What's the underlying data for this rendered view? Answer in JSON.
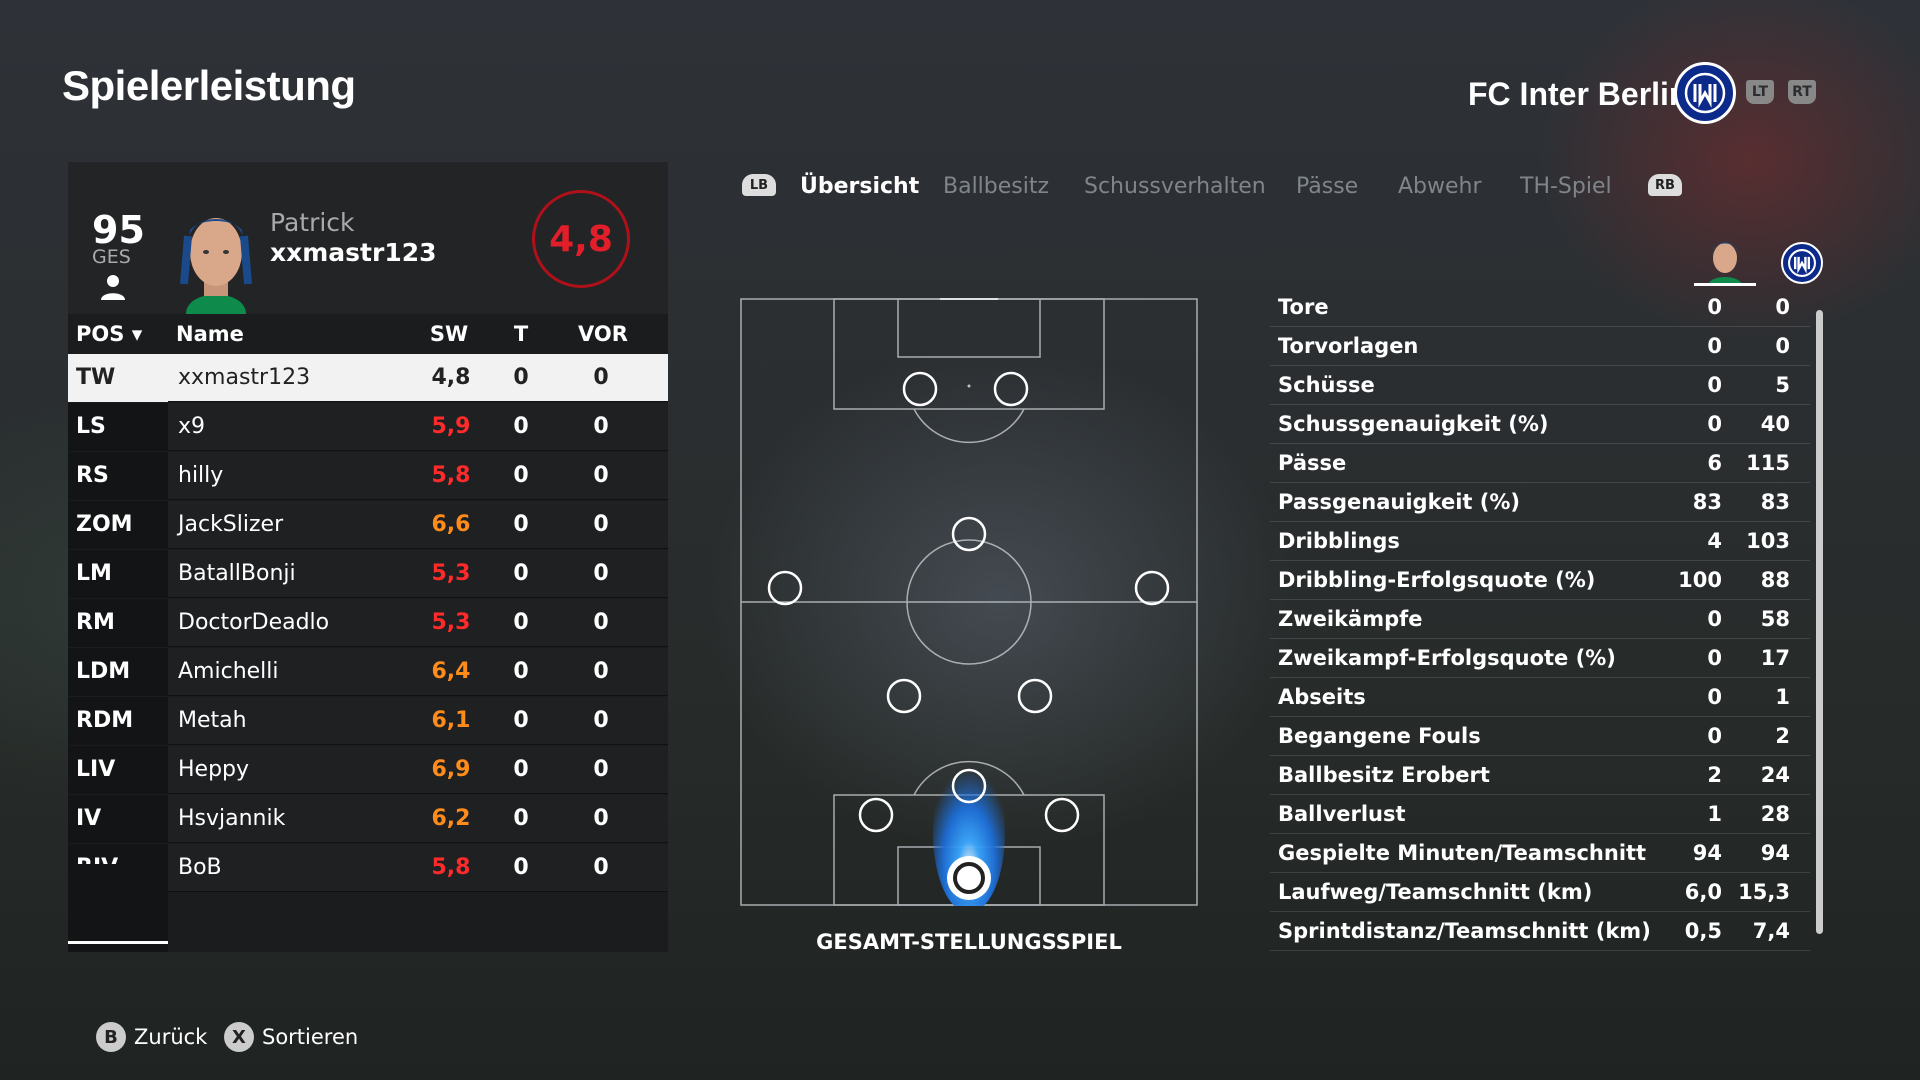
{
  "header": {
    "title": "Spielerleistung",
    "club_name": "FC Inter Berlin",
    "lt_label": "LT",
    "rt_label": "RT"
  },
  "player": {
    "overall": "95",
    "overall_label": "GES",
    "first_name": "Patrick",
    "gamer_tag": "xxmastr123",
    "match_rating": "4,8"
  },
  "table": {
    "columns": [
      "POS",
      "Name",
      "SW",
      "T",
      "VOR"
    ],
    "rows": [
      {
        "pos": "TW",
        "name": "xxmastr123",
        "sw": "4,8",
        "t": "0",
        "vor": "0",
        "sw_color": "white"
      },
      {
        "pos": "LS",
        "name": "x9",
        "sw": "5,9",
        "t": "0",
        "vor": "0",
        "sw_color": "red"
      },
      {
        "pos": "RS",
        "name": "hilly",
        "sw": "5,8",
        "t": "0",
        "vor": "0",
        "sw_color": "red"
      },
      {
        "pos": "ZOM",
        "name": "JackSlizer",
        "sw": "6,6",
        "t": "0",
        "vor": "0",
        "sw_color": "orange"
      },
      {
        "pos": "LM",
        "name": "BatallBonji",
        "sw": "5,3",
        "t": "0",
        "vor": "0",
        "sw_color": "red"
      },
      {
        "pos": "RM",
        "name": "DoctorDeadlo",
        "sw": "5,3",
        "t": "0",
        "vor": "0",
        "sw_color": "red"
      },
      {
        "pos": "LDM",
        "name": "Amichelli",
        "sw": "6,4",
        "t": "0",
        "vor": "0",
        "sw_color": "orange"
      },
      {
        "pos": "RDM",
        "name": "Metah",
        "sw": "6,1",
        "t": "0",
        "vor": "0",
        "sw_color": "orange"
      },
      {
        "pos": "LIV",
        "name": "Heppy",
        "sw": "6,9",
        "t": "0",
        "vor": "0",
        "sw_color": "orange"
      },
      {
        "pos": "IV",
        "name": "Hsvjannik",
        "sw": "6,2",
        "t": "0",
        "vor": "0",
        "sw_color": "orange"
      },
      {
        "pos": "RIV",
        "name": "BoB",
        "sw": "5,8",
        "t": "0",
        "vor": "0",
        "sw_color": "red"
      }
    ]
  },
  "tabs": {
    "lb": "LB",
    "rb": "RB",
    "items": [
      "Übersicht",
      "Ballbesitz",
      "Schussverhalten",
      "Pässe",
      "Abwehr",
      "TH-Spiel"
    ],
    "active": "Übersicht"
  },
  "pitch": {
    "caption": "GESAMT-STELLUNGSSPIEL"
  },
  "stats": [
    {
      "label": "Tore",
      "player": "0",
      "team": "0"
    },
    {
      "label": "Torvorlagen",
      "player": "0",
      "team": "0"
    },
    {
      "label": "Schüsse",
      "player": "0",
      "team": "5"
    },
    {
      "label": "Schussgenauigkeit (%)",
      "player": "0",
      "team": "40"
    },
    {
      "label": "Pässe",
      "player": "6",
      "team": "115"
    },
    {
      "label": "Passgenauigkeit (%)",
      "player": "83",
      "team": "83"
    },
    {
      "label": "Dribblings",
      "player": "4",
      "team": "103"
    },
    {
      "label": "Dribbling-Erfolgsquote (%)",
      "player": "100",
      "team": "88"
    },
    {
      "label": "Zweikämpfe",
      "player": "0",
      "team": "58"
    },
    {
      "label": "Zweikampf-Erfolgsquote (%)",
      "player": "0",
      "team": "17"
    },
    {
      "label": "Abseits",
      "player": "0",
      "team": "1"
    },
    {
      "label": "Begangene Fouls",
      "player": "0",
      "team": "2"
    },
    {
      "label": "Ballbesitz Erobert",
      "player": "2",
      "team": "24"
    },
    {
      "label": "Ballverlust",
      "player": "1",
      "team": "28"
    },
    {
      "label": "Gespielte Minuten/Teamschnitt",
      "player": "94",
      "team": "94"
    },
    {
      "label": "Laufweg/Teamschnitt (km)",
      "player": "6,0",
      "team": "15,3"
    },
    {
      "label": "Sprintdistanz/Teamschnitt (km)",
      "player": "0,5",
      "team": "7,4"
    }
  ],
  "footer": {
    "back_button": "B",
    "back_label": "Zurück",
    "sort_button": "X",
    "sort_label": "Sortieren"
  },
  "colors": {
    "rating_red": "#ff2a2a",
    "rating_orange": "#ff8c1a",
    "heatmap_blue": "#1e90ff",
    "club_blue": "#0b2a8a"
  }
}
